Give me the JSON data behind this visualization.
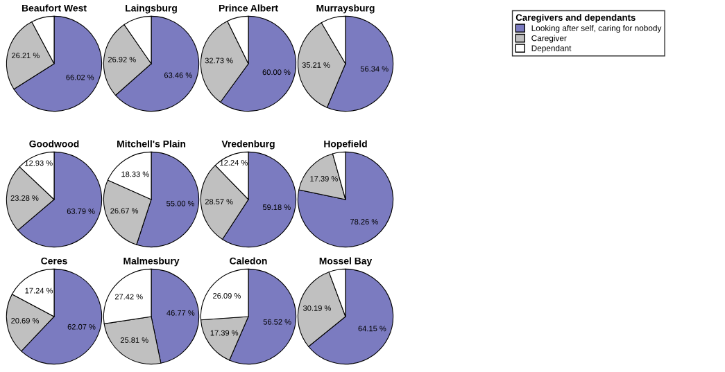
{
  "chart_data": [
    {
      "type": "pie",
      "title": "Beaufort West",
      "categories": [
        "Looking after self, caring for nobody",
        "Caregiver",
        "Dependant"
      ],
      "values": [
        66.02,
        26.21,
        7.77
      ],
      "value_labels": [
        "66.02 %",
        "26.21 %",
        null
      ],
      "colors": [
        "#7b7bc0",
        "#c0c0c0",
        "#ffffff"
      ],
      "legend": "right",
      "legend_title": "Caregivers and dependants"
    },
    {
      "type": "pie",
      "title": "Laingsburg",
      "categories": [
        null,
        null,
        null
      ],
      "values": [
        63.46,
        26.92,
        9.62
      ],
      "value_labels": [
        "63.46 %",
        "26.92 %",
        null
      ],
      "colors": [
        "#7b7bc0",
        "#c0c0c0",
        "#ffffff"
      ]
    },
    {
      "type": "pie",
      "title": "Prince Albert",
      "categories": [
        null,
        null,
        null
      ],
      "values": [
        60.0,
        32.73,
        7.27
      ],
      "value_labels": [
        "60.00 %",
        "32.73 %",
        null
      ],
      "colors": [
        "#7b7bc0",
        "#c0c0c0",
        "#ffffff"
      ]
    },
    {
      "type": "pie",
      "title": "Murraysburg",
      "categories": [
        null,
        null,
        null
      ],
      "values": [
        56.34,
        35.21,
        8.45
      ],
      "value_labels": [
        "56.34 %",
        "35.21 %",
        null
      ],
      "colors": [
        "#7b7bc0",
        "#c0c0c0",
        "#ffffff"
      ]
    },
    {
      "type": "pie",
      "title": "Goodwood",
      "categories": [
        null,
        null,
        null
      ],
      "values": [
        63.79,
        23.28,
        12.93
      ],
      "value_labels": [
        "63.79 %",
        "23.28 %",
        "12.93 %"
      ],
      "colors": [
        "#7b7bc0",
        "#c0c0c0",
        "#ffffff"
      ]
    },
    {
      "type": "pie",
      "title": "Mitchell's Plain",
      "categories": [
        null,
        null,
        null
      ],
      "values": [
        55.0,
        26.67,
        18.33
      ],
      "value_labels": [
        "55.00 %",
        "26.67 %",
        "18.33 %"
      ],
      "colors": [
        "#7b7bc0",
        "#c0c0c0",
        "#ffffff"
      ]
    },
    {
      "type": "pie",
      "title": "Vredenburg",
      "categories": [
        null,
        null,
        null
      ],
      "values": [
        59.18,
        28.57,
        12.24
      ],
      "value_labels": [
        "59.18 %",
        "28.57 %",
        "12.24 %"
      ],
      "colors": [
        "#7b7bc0",
        "#c0c0c0",
        "#ffffff"
      ]
    },
    {
      "type": "pie",
      "title": "Hopefield",
      "categories": [
        null,
        null,
        null
      ],
      "values": [
        78.26,
        17.39,
        4.35
      ],
      "value_labels": [
        "78.26 %",
        "17.39 %",
        null
      ],
      "colors": [
        "#7b7bc0",
        "#c0c0c0",
        "#ffffff"
      ]
    },
    {
      "type": "pie",
      "title": "Ceres",
      "categories": [
        null,
        null,
        null
      ],
      "values": [
        62.07,
        20.69,
        17.24
      ],
      "value_labels": [
        "62.07 %",
        "20.69 %",
        "17.24 %"
      ],
      "colors": [
        "#7b7bc0",
        "#c0c0c0",
        "#ffffff"
      ]
    },
    {
      "type": "pie",
      "title": "Malmesbury",
      "categories": [
        null,
        null,
        null
      ],
      "values": [
        46.77,
        25.81,
        27.42
      ],
      "value_labels": [
        "46.77 %",
        "25.81 %",
        "27.42 %"
      ],
      "colors": [
        "#7b7bc0",
        "#c0c0c0",
        "#ffffff"
      ]
    },
    {
      "type": "pie",
      "title": "Caledon",
      "categories": [
        null,
        null,
        null
      ],
      "values": [
        56.52,
        17.39,
        26.09
      ],
      "value_labels": [
        "56.52 %",
        "17.39 %",
        "26.09 %"
      ],
      "colors": [
        "#7b7bc0",
        "#c0c0c0",
        "#ffffff"
      ]
    },
    {
      "type": "pie",
      "title": "Mossel Bay",
      "categories": [
        null,
        null,
        null
      ],
      "values": [
        64.15,
        30.19,
        5.66
      ],
      "value_labels": [
        "64.15 %",
        "30.19 %",
        null
      ],
      "colors": [
        "#7b7bc0",
        "#c0c0c0",
        "#ffffff"
      ]
    }
  ]
}
